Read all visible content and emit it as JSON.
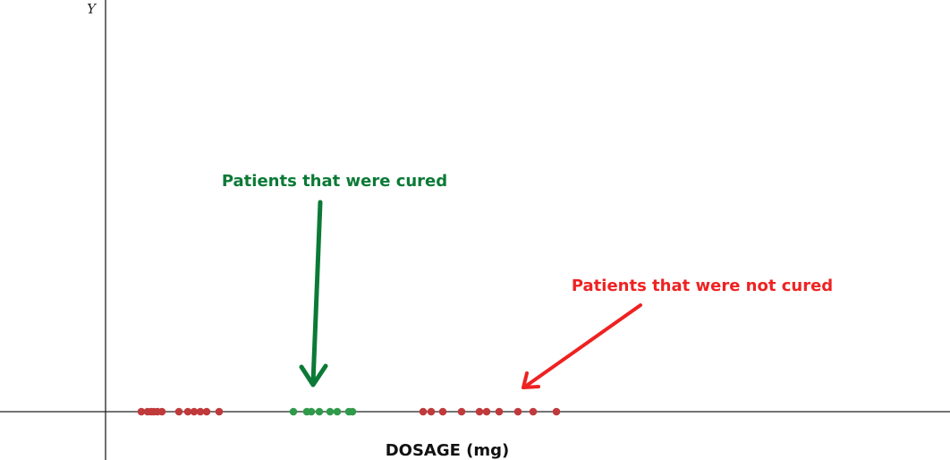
{
  "chart_data": {
    "type": "scatter",
    "xlabel": "DOSAGE (mg)",
    "ylabel": "Y",
    "grid": false,
    "series": [
      {
        "class": "not-cured-low",
        "color": "#c0393b",
        "x": [
          40,
          47,
          51,
          54,
          58,
          63,
          82,
          92,
          99,
          106,
          113,
          127
        ],
        "y": [
          0,
          0,
          0,
          0,
          0,
          0,
          0,
          0,
          0,
          0,
          0,
          0
        ]
      },
      {
        "class": "cured",
        "color": "#2e9a4a",
        "x": [
          210,
          225,
          230,
          239,
          251,
          259,
          272,
          276
        ],
        "y": [
          0,
          0,
          0,
          0,
          0,
          0,
          0,
          0
        ]
      },
      {
        "class": "not-cured-high",
        "color": "#c0393b",
        "x": [
          355,
          364,
          377,
          398,
          418,
          426,
          440,
          461,
          478,
          504
        ],
        "y": [
          0,
          0,
          0,
          0,
          0,
          0,
          0,
          0,
          0,
          0
        ]
      }
    ],
    "annotations": [
      {
        "text": "Patients that were cured",
        "color": "#0b7a36"
      },
      {
        "text": "Patients that were not cured",
        "color": "#ee2222"
      }
    ]
  }
}
